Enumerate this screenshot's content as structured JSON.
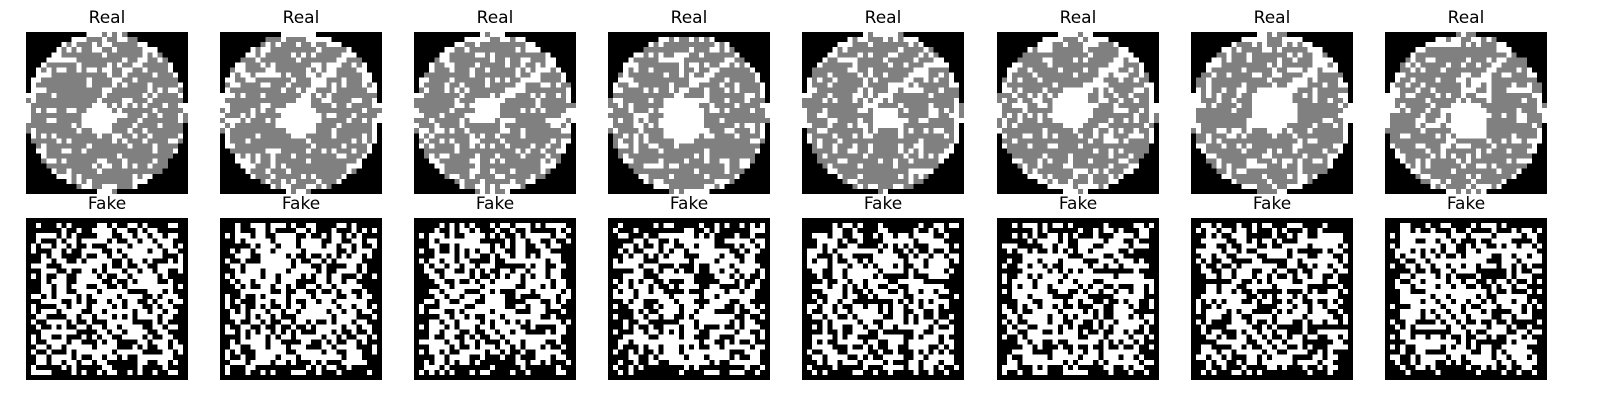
{
  "figure": {
    "rows": [
      {
        "name": "real",
        "panels": [
          {
            "title": "Real"
          },
          {
            "title": "Real"
          },
          {
            "title": "Real"
          },
          {
            "title": "Real"
          },
          {
            "title": "Real"
          },
          {
            "title": "Real"
          },
          {
            "title": "Real"
          },
          {
            "title": "Real"
          }
        ]
      },
      {
        "name": "fake",
        "panels": [
          {
            "title": "Fake"
          },
          {
            "title": "Fake"
          },
          {
            "title": "Fake"
          },
          {
            "title": "Fake"
          },
          {
            "title": "Fake"
          },
          {
            "title": "Fake"
          },
          {
            "title": "Fake"
          },
          {
            "title": "Fake"
          }
        ]
      }
    ]
  },
  "colors": {
    "background": "#000000",
    "wafer": "#808080",
    "defect": "#ffffff"
  }
}
